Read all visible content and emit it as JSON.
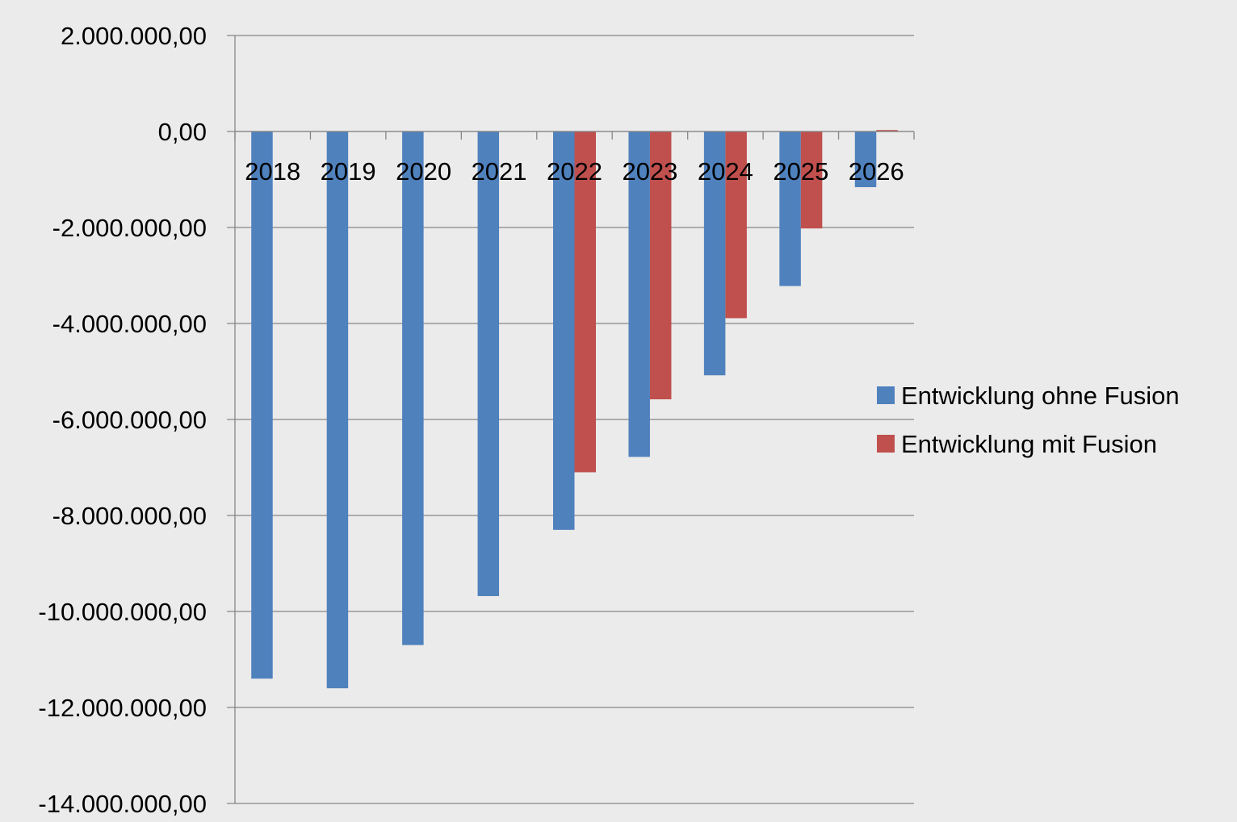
{
  "chart_data": {
    "type": "bar",
    "title": "",
    "xlabel": "",
    "ylabel": "",
    "categories": [
      "2018",
      "2019",
      "2020",
      "2021",
      "2022",
      "2023",
      "2024",
      "2025",
      "2026"
    ],
    "series": [
      {
        "name": "Entwicklung ohne Fusion",
        "color": "#4F81BD",
        "values": [
          -11400000,
          -11600000,
          -10700000,
          -9680000,
          -8300000,
          -6780000,
          -5080000,
          -3220000,
          -1160000
        ]
      },
      {
        "name": "Entwicklung mit Fusion",
        "color": "#C0504D",
        "values": [
          null,
          null,
          null,
          null,
          -7100000,
          -5580000,
          -3890000,
          -2020000,
          30000
        ]
      }
    ],
    "ylim": [
      -14000000,
      2000000
    ],
    "yticks": [
      2000000,
      0,
      -2000000,
      -4000000,
      -6000000,
      -8000000,
      -10000000,
      -12000000,
      -14000000
    ],
    "ytick_labels": [
      "2.000.000,00",
      "0,00",
      "-2.000.000,00",
      "-4.000.000,00",
      "-6.000.000,00",
      "-8.000.000,00",
      "-10.000.000,00",
      "-12.000.000,00",
      "-14.000.000,00"
    ],
    "grid": true,
    "legend_position": "right",
    "background_color": "#EBEBEB",
    "gridline_color": "#868686"
  }
}
